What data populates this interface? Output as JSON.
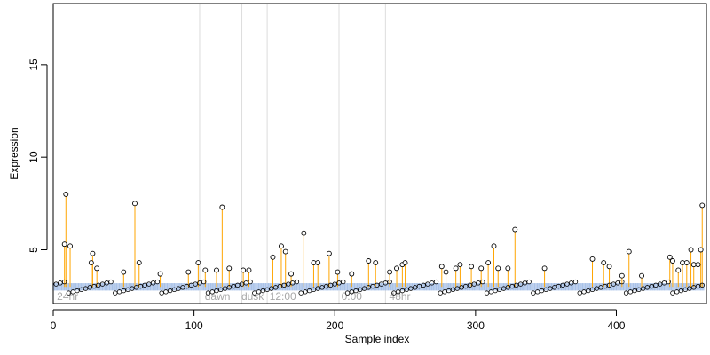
{
  "chart_data": {
    "type": "scatter",
    "style": "lollipop points over a baseline band",
    "xlabel": "Sample index",
    "ylabel": "Expression",
    "xlim": [
      0,
      464
    ],
    "ylim": [
      2.1,
      18.3
    ],
    "x_ticks": [
      0,
      100,
      200,
      300,
      400
    ],
    "y_ticks": [
      5,
      10,
      15
    ],
    "grid": false,
    "colors": {
      "stem": "#FFA500",
      "band": "#A9C2E8",
      "point_stroke": "#000000",
      "region_line": "#DCDCDC",
      "region_label": "#A8A8A8"
    },
    "baseline": 3.0,
    "region_lines": [
      104,
      134,
      152,
      203,
      236
    ],
    "region_labels": [
      {
        "x": 2,
        "text": "24hr"
      },
      {
        "x": 107,
        "text": "dawn"
      },
      {
        "x": 133,
        "text": "dusk"
      },
      {
        "x": 153,
        "text": "12:00"
      },
      {
        "x": 204,
        "text": "0:00"
      },
      {
        "x": 238,
        "text": "48hr"
      }
    ],
    "peaks": [
      {
        "x": 8,
        "y": 5.3
      },
      {
        "x": 9,
        "y": 8.0
      },
      {
        "x": 12,
        "y": 5.2
      },
      {
        "x": 27,
        "y": 4.3
      },
      {
        "x": 28,
        "y": 4.8
      },
      {
        "x": 31,
        "y": 4.0
      },
      {
        "x": 50,
        "y": 3.8
      },
      {
        "x": 58,
        "y": 7.5
      },
      {
        "x": 61,
        "y": 4.3
      },
      {
        "x": 76,
        "y": 3.7
      },
      {
        "x": 96,
        "y": 3.8
      },
      {
        "x": 103,
        "y": 4.3
      },
      {
        "x": 108,
        "y": 3.9
      },
      {
        "x": 116,
        "y": 3.9
      },
      {
        "x": 120,
        "y": 7.3
      },
      {
        "x": 125,
        "y": 4.0
      },
      {
        "x": 135,
        "y": 3.9
      },
      {
        "x": 139,
        "y": 3.9
      },
      {
        "x": 156,
        "y": 4.6
      },
      {
        "x": 162,
        "y": 5.2
      },
      {
        "x": 165,
        "y": 4.9
      },
      {
        "x": 169,
        "y": 3.7
      },
      {
        "x": 178,
        "y": 5.9
      },
      {
        "x": 185,
        "y": 4.3
      },
      {
        "x": 188,
        "y": 4.3
      },
      {
        "x": 196,
        "y": 4.8
      },
      {
        "x": 202,
        "y": 3.8
      },
      {
        "x": 212,
        "y": 3.7
      },
      {
        "x": 224,
        "y": 4.4
      },
      {
        "x": 229,
        "y": 4.3
      },
      {
        "x": 239,
        "y": 3.8
      },
      {
        "x": 244,
        "y": 4.0
      },
      {
        "x": 248,
        "y": 4.2
      },
      {
        "x": 250,
        "y": 4.3
      },
      {
        "x": 276,
        "y": 4.1
      },
      {
        "x": 279,
        "y": 3.8
      },
      {
        "x": 286,
        "y": 4.0
      },
      {
        "x": 289,
        "y": 4.2
      },
      {
        "x": 297,
        "y": 4.1
      },
      {
        "x": 304,
        "y": 4.0
      },
      {
        "x": 309,
        "y": 4.3
      },
      {
        "x": 313,
        "y": 5.2
      },
      {
        "x": 316,
        "y": 4.0
      },
      {
        "x": 323,
        "y": 4.0
      },
      {
        "x": 328,
        "y": 6.1
      },
      {
        "x": 349,
        "y": 4.0
      },
      {
        "x": 383,
        "y": 4.5
      },
      {
        "x": 391,
        "y": 4.3
      },
      {
        "x": 395,
        "y": 4.1
      },
      {
        "x": 404,
        "y": 3.6
      },
      {
        "x": 409,
        "y": 4.9
      },
      {
        "x": 418,
        "y": 3.6
      },
      {
        "x": 438,
        "y": 4.6
      },
      {
        "x": 440,
        "y": 4.4
      },
      {
        "x": 444,
        "y": 3.9
      },
      {
        "x": 447,
        "y": 4.3
      },
      {
        "x": 450,
        "y": 4.3
      },
      {
        "x": 453,
        "y": 5.0
      },
      {
        "x": 455,
        "y": 4.2
      },
      {
        "x": 458,
        "y": 4.2
      },
      {
        "x": 460,
        "y": 5.0
      },
      {
        "x": 461,
        "y": 7.4
      }
    ]
  }
}
